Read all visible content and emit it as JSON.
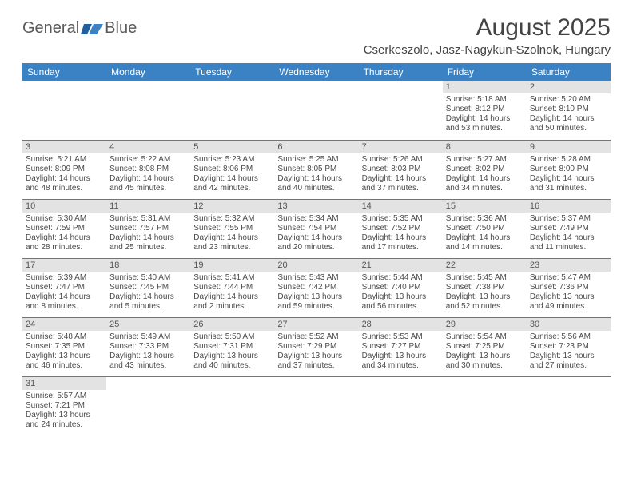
{
  "brand": {
    "name_left": "General",
    "name_right": "Blue"
  },
  "title": "August 2025",
  "location": "Cserkeszolo, Jasz-Nagykun-Szolnok, Hungary",
  "header_bg": "#3a82c4",
  "day_headers": [
    "Sunday",
    "Monday",
    "Tuesday",
    "Wednesday",
    "Thursday",
    "Friday",
    "Saturday"
  ],
  "weeks": [
    [
      null,
      null,
      null,
      null,
      null,
      {
        "n": "1",
        "sunrise": "5:18 AM",
        "sunset": "8:12 PM",
        "daylight": "14 hours and 53 minutes."
      },
      {
        "n": "2",
        "sunrise": "5:20 AM",
        "sunset": "8:10 PM",
        "daylight": "14 hours and 50 minutes."
      }
    ],
    [
      {
        "n": "3",
        "sunrise": "5:21 AM",
        "sunset": "8:09 PM",
        "daylight": "14 hours and 48 minutes."
      },
      {
        "n": "4",
        "sunrise": "5:22 AM",
        "sunset": "8:08 PM",
        "daylight": "14 hours and 45 minutes."
      },
      {
        "n": "5",
        "sunrise": "5:23 AM",
        "sunset": "8:06 PM",
        "daylight": "14 hours and 42 minutes."
      },
      {
        "n": "6",
        "sunrise": "5:25 AM",
        "sunset": "8:05 PM",
        "daylight": "14 hours and 40 minutes."
      },
      {
        "n": "7",
        "sunrise": "5:26 AM",
        "sunset": "8:03 PM",
        "daylight": "14 hours and 37 minutes."
      },
      {
        "n": "8",
        "sunrise": "5:27 AM",
        "sunset": "8:02 PM",
        "daylight": "14 hours and 34 minutes."
      },
      {
        "n": "9",
        "sunrise": "5:28 AM",
        "sunset": "8:00 PM",
        "daylight": "14 hours and 31 minutes."
      }
    ],
    [
      {
        "n": "10",
        "sunrise": "5:30 AM",
        "sunset": "7:59 PM",
        "daylight": "14 hours and 28 minutes."
      },
      {
        "n": "11",
        "sunrise": "5:31 AM",
        "sunset": "7:57 PM",
        "daylight": "14 hours and 25 minutes."
      },
      {
        "n": "12",
        "sunrise": "5:32 AM",
        "sunset": "7:55 PM",
        "daylight": "14 hours and 23 minutes."
      },
      {
        "n": "13",
        "sunrise": "5:34 AM",
        "sunset": "7:54 PM",
        "daylight": "14 hours and 20 minutes."
      },
      {
        "n": "14",
        "sunrise": "5:35 AM",
        "sunset": "7:52 PM",
        "daylight": "14 hours and 17 minutes."
      },
      {
        "n": "15",
        "sunrise": "5:36 AM",
        "sunset": "7:50 PM",
        "daylight": "14 hours and 14 minutes."
      },
      {
        "n": "16",
        "sunrise": "5:37 AM",
        "sunset": "7:49 PM",
        "daylight": "14 hours and 11 minutes."
      }
    ],
    [
      {
        "n": "17",
        "sunrise": "5:39 AM",
        "sunset": "7:47 PM",
        "daylight": "14 hours and 8 minutes."
      },
      {
        "n": "18",
        "sunrise": "5:40 AM",
        "sunset": "7:45 PM",
        "daylight": "14 hours and 5 minutes."
      },
      {
        "n": "19",
        "sunrise": "5:41 AM",
        "sunset": "7:44 PM",
        "daylight": "14 hours and 2 minutes."
      },
      {
        "n": "20",
        "sunrise": "5:43 AM",
        "sunset": "7:42 PM",
        "daylight": "13 hours and 59 minutes."
      },
      {
        "n": "21",
        "sunrise": "5:44 AM",
        "sunset": "7:40 PM",
        "daylight": "13 hours and 56 minutes."
      },
      {
        "n": "22",
        "sunrise": "5:45 AM",
        "sunset": "7:38 PM",
        "daylight": "13 hours and 52 minutes."
      },
      {
        "n": "23",
        "sunrise": "5:47 AM",
        "sunset": "7:36 PM",
        "daylight": "13 hours and 49 minutes."
      }
    ],
    [
      {
        "n": "24",
        "sunrise": "5:48 AM",
        "sunset": "7:35 PM",
        "daylight": "13 hours and 46 minutes."
      },
      {
        "n": "25",
        "sunrise": "5:49 AM",
        "sunset": "7:33 PM",
        "daylight": "13 hours and 43 minutes."
      },
      {
        "n": "26",
        "sunrise": "5:50 AM",
        "sunset": "7:31 PM",
        "daylight": "13 hours and 40 minutes."
      },
      {
        "n": "27",
        "sunrise": "5:52 AM",
        "sunset": "7:29 PM",
        "daylight": "13 hours and 37 minutes."
      },
      {
        "n": "28",
        "sunrise": "5:53 AM",
        "sunset": "7:27 PM",
        "daylight": "13 hours and 34 minutes."
      },
      {
        "n": "29",
        "sunrise": "5:54 AM",
        "sunset": "7:25 PM",
        "daylight": "13 hours and 30 minutes."
      },
      {
        "n": "30",
        "sunrise": "5:56 AM",
        "sunset": "7:23 PM",
        "daylight": "13 hours and 27 minutes."
      }
    ],
    [
      {
        "n": "31",
        "sunrise": "5:57 AM",
        "sunset": "7:21 PM",
        "daylight": "13 hours and 24 minutes."
      },
      null,
      null,
      null,
      null,
      null,
      null
    ]
  ],
  "labels": {
    "sunrise": "Sunrise: ",
    "sunset": "Sunset: ",
    "daylight": "Daylight: "
  }
}
